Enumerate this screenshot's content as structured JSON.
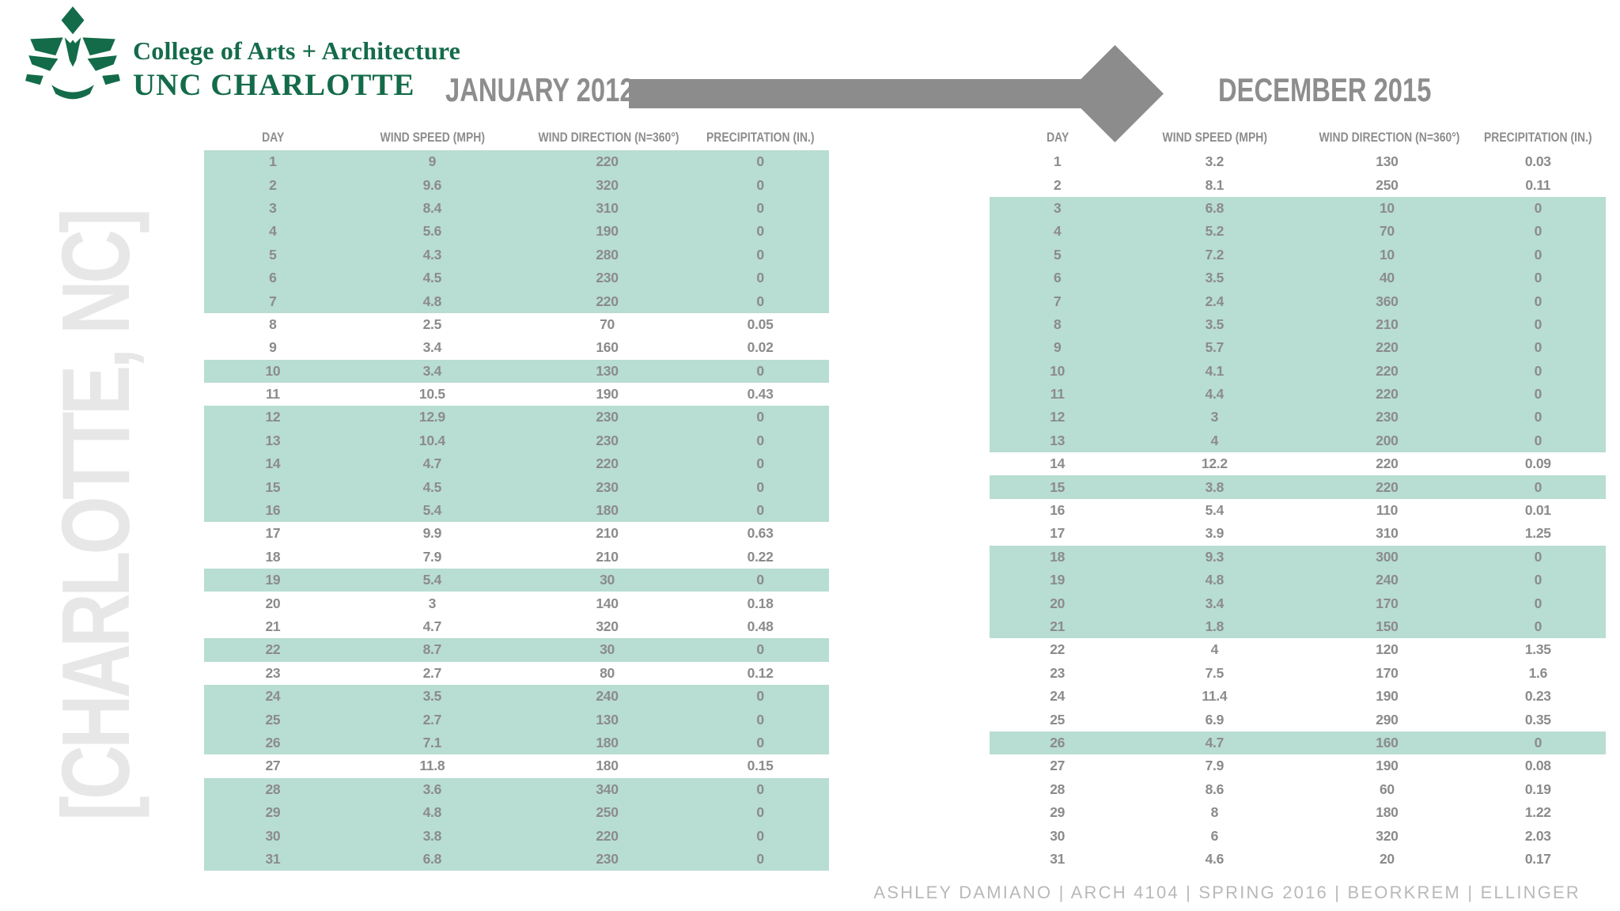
{
  "logo": {
    "line1": "College of Arts + Architecture",
    "line2": "UNC CHARLOTTE"
  },
  "watermark": {
    "text": "[CHARLOTTE, NC]"
  },
  "footer": {
    "credit": "ASHLEY DAMIANO  |  ARCH 4104  |  SPRING 2016  |  BEORKREM  |  ELLINGER"
  },
  "colors": {
    "highlight_teal": "#b8ddd2",
    "table_text_gray": "#8b8b8b",
    "title_gray": "#8d8d8d",
    "arrow_gray": "#8c8c8c",
    "logo_green": "#146b4a",
    "watermark_gray": "#e7e7e7",
    "footer_gray": "#b9b9b9"
  },
  "chart_data": [
    {
      "type": "table",
      "title": "JANUARY 2012",
      "columns": [
        "DAY",
        "WIND SPEED (MPH)",
        "WIND DIRECTION (N=360°)",
        "PRECIPITATION (IN.)"
      ],
      "row_format": [
        "day",
        "wind_speed_mph",
        "wind_direction_deg",
        "precipitation_in",
        "highlighted"
      ],
      "highlight_color": "#b8ddd2",
      "rows": [
        [
          "1",
          "9",
          "220",
          "0",
          1
        ],
        [
          "2",
          "9.6",
          "320",
          "0",
          1
        ],
        [
          "3",
          "8.4",
          "310",
          "0",
          1
        ],
        [
          "4",
          "5.6",
          "190",
          "0",
          1
        ],
        [
          "5",
          "4.3",
          "280",
          "0",
          1
        ],
        [
          "6",
          "4.5",
          "230",
          "0",
          1
        ],
        [
          "7",
          "4.8",
          "220",
          "0",
          1
        ],
        [
          "8",
          "2.5",
          "70",
          "0.05",
          0
        ],
        [
          "9",
          "3.4",
          "160",
          "0.02",
          0
        ],
        [
          "10",
          "3.4",
          "130",
          "0",
          1
        ],
        [
          "11",
          "10.5",
          "190",
          "0.43",
          0
        ],
        [
          "12",
          "12.9",
          "230",
          "0",
          1
        ],
        [
          "13",
          "10.4",
          "230",
          "0",
          1
        ],
        [
          "14",
          "4.7",
          "220",
          "0",
          1
        ],
        [
          "15",
          "4.5",
          "230",
          "0",
          1
        ],
        [
          "16",
          "5.4",
          "180",
          "0",
          1
        ],
        [
          "17",
          "9.9",
          "210",
          "0.63",
          0
        ],
        [
          "18",
          "7.9",
          "210",
          "0.22",
          0
        ],
        [
          "19",
          "5.4",
          "30",
          "0",
          1
        ],
        [
          "20",
          "3",
          "140",
          "0.18",
          0
        ],
        [
          "21",
          "4.7",
          "320",
          "0.48",
          0
        ],
        [
          "22",
          "8.7",
          "30",
          "0",
          1
        ],
        [
          "23",
          "2.7",
          "80",
          "0.12",
          0
        ],
        [
          "24",
          "3.5",
          "240",
          "0",
          1
        ],
        [
          "25",
          "2.7",
          "130",
          "0",
          1
        ],
        [
          "26",
          "7.1",
          "180",
          "0",
          1
        ],
        [
          "27",
          "11.8",
          "180",
          "0.15",
          0
        ],
        [
          "28",
          "3.6",
          "340",
          "0",
          1
        ],
        [
          "29",
          "4.8",
          "250",
          "0",
          1
        ],
        [
          "30",
          "3.8",
          "220",
          "0",
          1
        ],
        [
          "31",
          "6.8",
          "230",
          "0",
          1
        ]
      ]
    },
    {
      "type": "table",
      "title": "DECEMBER 2015",
      "columns": [
        "DAY",
        "WIND SPEED (MPH)",
        "WIND DIRECTION (N=360°)",
        "PRECIPITATION (IN.)"
      ],
      "row_format": [
        "day",
        "wind_speed_mph",
        "wind_direction_deg",
        "precipitation_in",
        "highlighted"
      ],
      "highlight_color": "#b8ddd2",
      "rows": [
        [
          "1",
          "3.2",
          "130",
          "0.03",
          0
        ],
        [
          "2",
          "8.1",
          "250",
          "0.11",
          0
        ],
        [
          "3",
          "6.8",
          "10",
          "0",
          1
        ],
        [
          "4",
          "5.2",
          "70",
          "0",
          1
        ],
        [
          "5",
          "7.2",
          "10",
          "0",
          1
        ],
        [
          "6",
          "3.5",
          "40",
          "0",
          1
        ],
        [
          "7",
          "2.4",
          "360",
          "0",
          1
        ],
        [
          "8",
          "3.5",
          "210",
          "0",
          1
        ],
        [
          "9",
          "5.7",
          "220",
          "0",
          1
        ],
        [
          "10",
          "4.1",
          "220",
          "0",
          1
        ],
        [
          "11",
          "4.4",
          "220",
          "0",
          1
        ],
        [
          "12",
          "3",
          "230",
          "0",
          1
        ],
        [
          "13",
          "4",
          "200",
          "0",
          1
        ],
        [
          "14",
          "12.2",
          "220",
          "0.09",
          0
        ],
        [
          "15",
          "3.8",
          "220",
          "0",
          1
        ],
        [
          "16",
          "5.4",
          "110",
          "0.01",
          0
        ],
        [
          "17",
          "3.9",
          "310",
          "1.25",
          0
        ],
        [
          "18",
          "9.3",
          "300",
          "0",
          1
        ],
        [
          "19",
          "4.8",
          "240",
          "0",
          1
        ],
        [
          "20",
          "3.4",
          "170",
          "0",
          1
        ],
        [
          "21",
          "1.8",
          "150",
          "0",
          1
        ],
        [
          "22",
          "4",
          "120",
          "1.35",
          0
        ],
        [
          "23",
          "7.5",
          "170",
          "1.6",
          0
        ],
        [
          "24",
          "11.4",
          "190",
          "0.23",
          0
        ],
        [
          "25",
          "6.9",
          "290",
          "0.35",
          0
        ],
        [
          "26",
          "4.7",
          "160",
          "0",
          1
        ],
        [
          "27",
          "7.9",
          "190",
          "0.08",
          0
        ],
        [
          "28",
          "8.6",
          "60",
          "0.19",
          0
        ],
        [
          "29",
          "8",
          "180",
          "1.22",
          0
        ],
        [
          "30",
          "6",
          "320",
          "2.03",
          0
        ],
        [
          "31",
          "4.6",
          "20",
          "0.17",
          0
        ]
      ]
    }
  ]
}
